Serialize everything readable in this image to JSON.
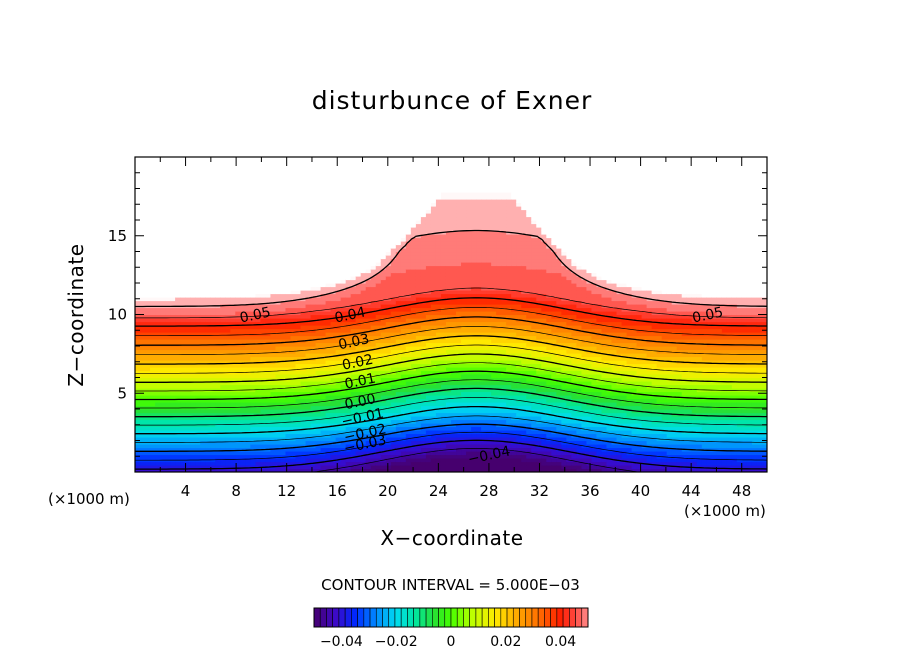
{
  "chart_data": {
    "type": "heatmap",
    "title": "disturbunce of Exner",
    "xlabel": "X−coordinate",
    "ylabel": "Z−coordinate",
    "x_unit": "(×1000 m)",
    "xlim": [
      0,
      50
    ],
    "ylim": [
      0,
      20
    ],
    "x_ticks": [
      4,
      8,
      12,
      16,
      20,
      24,
      28,
      32,
      36,
      40,
      44,
      48
    ],
    "y_ticks": [
      5,
      10,
      15
    ],
    "contour_interval_text": "CONTOUR INTERVAL = 5.000E−03",
    "contour_interval": 0.005,
    "contour_labels": [
      {
        "text": "0.05",
        "x": 9.5,
        "z": 10.0
      },
      {
        "text": "0.04",
        "x": 17.0,
        "z": 10.0
      },
      {
        "text": "0.03",
        "x": 17.3,
        "z": 8.3
      },
      {
        "text": "0.02",
        "x": 17.6,
        "z": 7.0
      },
      {
        "text": "0.01",
        "x": 17.8,
        "z": 5.8
      },
      {
        "text": "0.00",
        "x": 17.8,
        "z": 4.5
      },
      {
        "text": "−0.01",
        "x": 18.0,
        "z": 3.5
      },
      {
        "text": "−0.02",
        "x": 18.2,
        "z": 2.5
      },
      {
        "text": "−0.03",
        "x": 18.2,
        "z": 1.8
      },
      {
        "text": "−0.04",
        "x": 28.0,
        "z": 1.1
      },
      {
        "text": "0.05",
        "x": 45.3,
        "z": 10.0
      }
    ],
    "colorbar": {
      "min": -0.05,
      "max": 0.05,
      "ticks": [
        -0.04,
        -0.02,
        0,
        0.02,
        0.04
      ],
      "tick_labels": [
        "−0.04",
        "−0.02",
        "0",
        "0.02",
        "0.04"
      ]
    }
  }
}
